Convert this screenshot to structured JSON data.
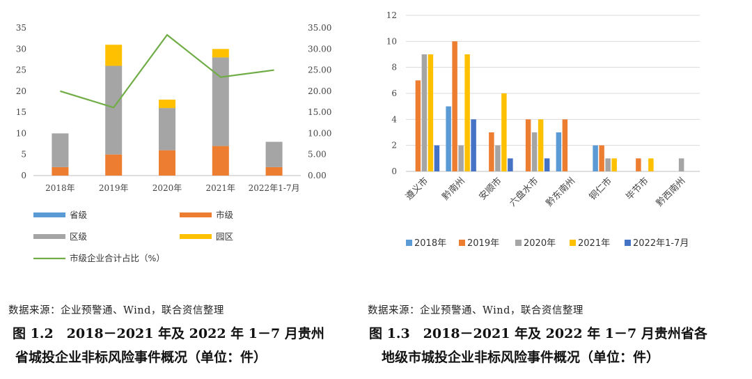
{
  "chart_data": [
    {
      "type": "bar",
      "stacked": true,
      "secondary_line": true,
      "categories": [
        "2018年",
        "2019年",
        "2020年",
        "2021年",
        "2022年1-7月"
      ],
      "series": [
        {
          "name": "省级",
          "color": "#5b9bd5",
          "values": [
            0,
            0,
            0,
            0,
            0
          ]
        },
        {
          "name": "市级",
          "color": "#ed7d31",
          "values": [
            2,
            5,
            6,
            7,
            2
          ]
        },
        {
          "name": "区级",
          "color": "#a5a5a5",
          "values": [
            8,
            21,
            10,
            21,
            6
          ]
        },
        {
          "name": "园区",
          "color": "#ffc000",
          "values": [
            0,
            5,
            2,
            2,
            0
          ]
        }
      ],
      "line_series": {
        "name": "市级企业合计占比（%）",
        "color": "#70ad47",
        "values": [
          20.0,
          16.13,
          33.33,
          23.33,
          25.0
        ]
      },
      "ylim": [
        0,
        35
      ],
      "y_ticks": [
        "0",
        "5",
        "10",
        "15",
        "20",
        "25",
        "30",
        "35"
      ],
      "y2lim": [
        0,
        35
      ],
      "y2_ticks": [
        "0.00",
        "5.00",
        "10.00",
        "15.00",
        "20.00",
        "25.00",
        "30.00",
        "35.00"
      ],
      "legend_position": "bottom",
      "grid": false
    },
    {
      "type": "bar",
      "categories": [
        "遵义市",
        "黔南州",
        "安顺市",
        "六盘水市",
        "黔东南州",
        "铜仁市",
        "毕节市",
        "黔西南州"
      ],
      "series": [
        {
          "name": "2018年",
          "color": "#5b9bd5",
          "values": [
            0,
            5,
            0,
            0,
            3,
            2,
            0,
            0
          ]
        },
        {
          "name": "2019年",
          "color": "#ed7d31",
          "values": [
            7,
            10,
            3,
            4,
            4,
            2,
            1,
            0
          ]
        },
        {
          "name": "2020年",
          "color": "#a5a5a5",
          "values": [
            9,
            2,
            2,
            3,
            0,
            1,
            0,
            1
          ]
        },
        {
          "name": "2021年",
          "color": "#ffc000",
          "values": [
            9,
            9,
            6,
            4,
            0,
            1,
            1,
            0
          ]
        },
        {
          "name": "2022年1-7月",
          "color": "#4472c4",
          "values": [
            2,
            4,
            1,
            1,
            0,
            0,
            0,
            0
          ]
        }
      ],
      "ylim": [
        0,
        12
      ],
      "y_ticks": [
        "0",
        "2",
        "4",
        "6",
        "8",
        "10",
        "12"
      ],
      "legend_position": "bottom",
      "grid": true
    }
  ],
  "source_left": "数据来源：企业预警通、Wind，联合资信整理",
  "source_right": "数据来源：企业预警通、Wind，联合资信整理",
  "caption_left_line1": "图 1.2　2018－2021 年及 2022 年 1－7 月贵州",
  "caption_left_line2": "省城投企业非标风险事件概况（单位：件）",
  "caption_right_line1": "图 1.3　2018－2021 年及 2022 年 1－7 月贵州省各",
  "caption_right_line2": "地级市城投企业非标风险事件概况（单位：件）"
}
